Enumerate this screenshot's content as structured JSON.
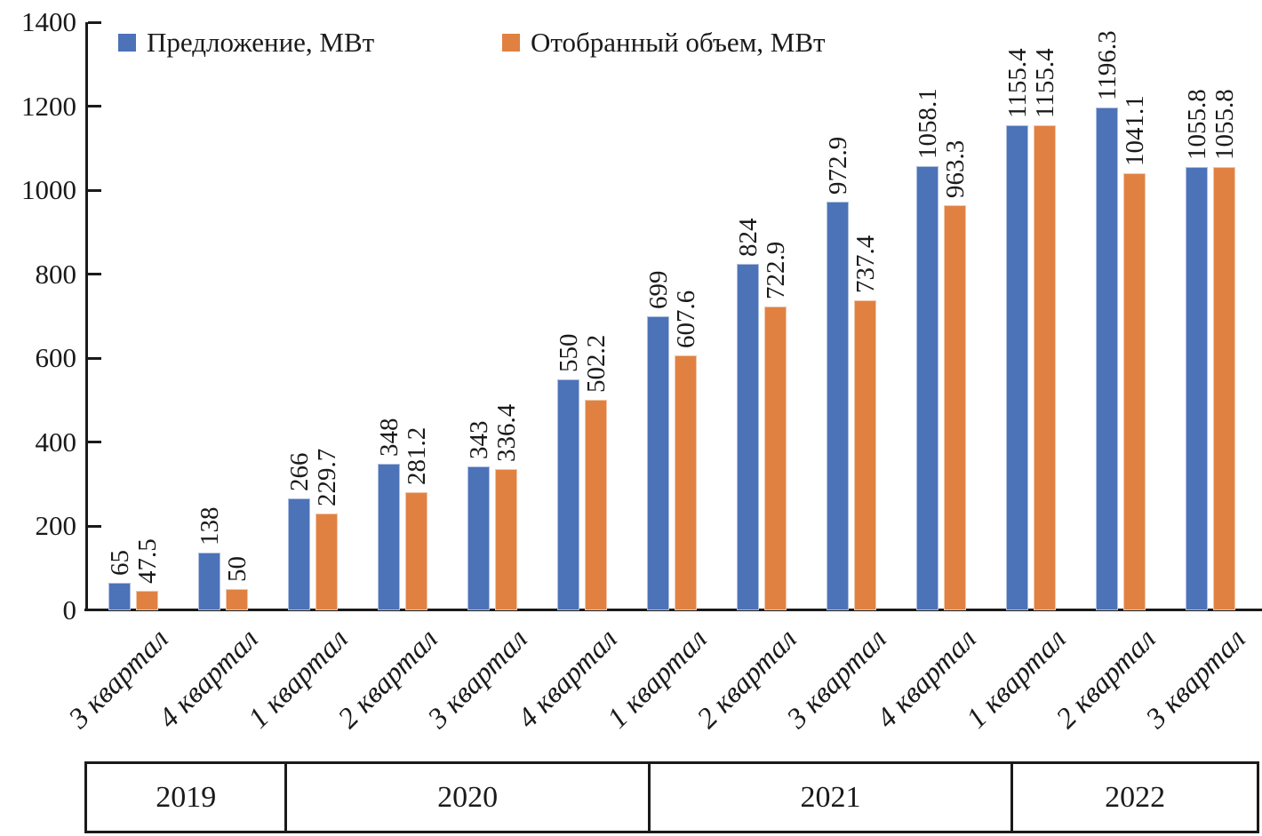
{
  "chart_data": {
    "type": "bar",
    "title": "",
    "xlabel": "",
    "ylabel": "",
    "legend_position": "top",
    "grid": false,
    "yaxis": {
      "min": 0,
      "max": 1400,
      "step": 200,
      "tick_labels": [
        "0",
        "200",
        "400",
        "600",
        "800",
        "1000",
        "1200",
        "1400"
      ]
    },
    "categories": [
      "3 квартал",
      "4 квартал",
      "1 квартал",
      "2 квартал",
      "3 квартал",
      "4 квартал",
      "1 квартал",
      "2 квартал",
      "3 квартал",
      "4 квартал",
      "1 квартал",
      "2 квартал",
      "3 квартал"
    ],
    "series": [
      {
        "name": "Предложение, МВт",
        "color": "#4C72B8",
        "values": [
          65,
          138,
          266,
          348,
          343,
          550,
          699,
          824,
          972.9,
          1058.1,
          1155.4,
          1196.3,
          1055.8
        ],
        "value_labels": [
          "65",
          "138",
          "266",
          "348",
          "343",
          "550",
          "699",
          "824",
          "972.9",
          "1058.1",
          "1155.4",
          "1196.3",
          "1055.8"
        ]
      },
      {
        "name": "Отобранный объем, МВт",
        "color": "#E08142",
        "values": [
          47.5,
          50,
          229.7,
          281.2,
          336.4,
          502.2,
          607.6,
          722.9,
          737.4,
          963.3,
          1155.4,
          1041.1,
          1055.8
        ],
        "value_labels": [
          "47.5",
          "50",
          "229.7",
          "281.2",
          "336.4",
          "502.2",
          "607.6",
          "722.9",
          "737.4",
          "963.3",
          "1155.4",
          "1041.1",
          "1055.8"
        ]
      }
    ],
    "year_bands": [
      {
        "label": "2019",
        "quarters": 2
      },
      {
        "label": "2020",
        "quarters": 4
      },
      {
        "label": "2021",
        "quarters": 4
      },
      {
        "label": "2022",
        "quarters": 3
      }
    ],
    "axis_color": "#1a1a1a"
  }
}
